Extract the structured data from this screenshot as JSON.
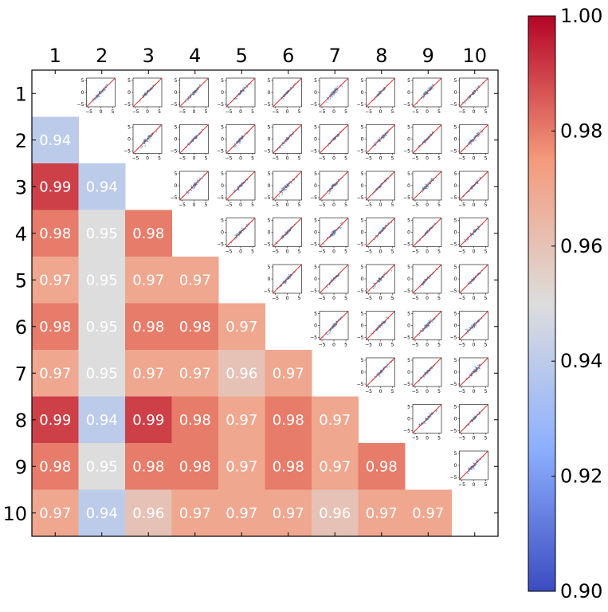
{
  "chart_data": {
    "type": "heatmap",
    "title": "",
    "labels": [
      "1",
      "2",
      "3",
      "4",
      "5",
      "6",
      "7",
      "8",
      "9",
      "10"
    ],
    "lower_triangle": [
      [],
      [
        0.94
      ],
      [
        0.99,
        0.94
      ],
      [
        0.98,
        0.95,
        0.98
      ],
      [
        0.97,
        0.95,
        0.97,
        0.97
      ],
      [
        0.98,
        0.95,
        0.98,
        0.98,
        0.97
      ],
      [
        0.97,
        0.95,
        0.97,
        0.97,
        0.96,
        0.97
      ],
      [
        0.99,
        0.94,
        0.99,
        0.98,
        0.97,
        0.98,
        0.97
      ],
      [
        0.98,
        0.95,
        0.98,
        0.98,
        0.97,
        0.98,
        0.97,
        0.98
      ],
      [
        0.97,
        0.94,
        0.96,
        0.97,
        0.97,
        0.97,
        0.96,
        0.97,
        0.97
      ]
    ],
    "upper_triangle": "scatter inset of predicted vs actual with identity line",
    "inset_axis": {
      "range": [
        -6,
        6
      ],
      "ticks": [
        -5,
        0,
        5
      ],
      "tick_labels": [
        "−5",
        "0",
        "5"
      ]
    },
    "colorbar": {
      "vmin": 0.9,
      "vmax": 1.0,
      "ticks": [
        0.9,
        0.92,
        0.94,
        0.96,
        0.98,
        1.0
      ],
      "tick_labels": [
        "0.90",
        "0.92",
        "0.94",
        "0.96",
        "0.98",
        "1.00"
      ],
      "colormap": "coolwarm"
    },
    "colors": {
      "scatter_points": "#1f77b4",
      "identity_line": "#d62728",
      "cell_text": "#ffffff"
    }
  }
}
